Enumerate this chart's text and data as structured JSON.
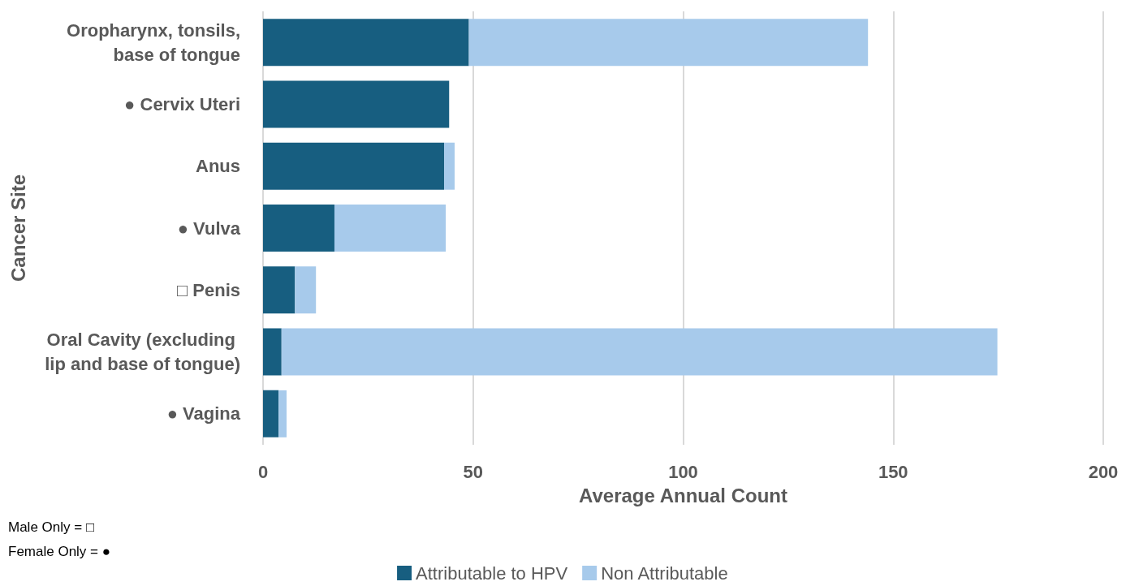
{
  "chart_data": {
    "type": "bar",
    "orientation": "horizontal",
    "stacked": true,
    "xlabel": "Average Annual Count",
    "ylabel": "Cancer Site",
    "categories": [
      "Oropharynx, tonsils,\nbase of tongue",
      "● Cervix Uteri",
      "Anus",
      "● Vulva",
      "□ Penis",
      "Oral Cavity (excluding \nlip and base of tongue)",
      "● Vagina"
    ],
    "series": [
      {
        "name": "Attributable to HPV",
        "color": "#175e80",
        "values": [
          49,
          44.3,
          43.1,
          17,
          7.6,
          4.4,
          3.7
        ]
      },
      {
        "name": "Non Attributable",
        "color": "#a7caeb",
        "values": [
          95,
          0,
          2.5,
          26.5,
          5,
          170.4,
          1.9
        ]
      }
    ],
    "xlim": [
      0,
      200
    ],
    "xticks": [
      0,
      50,
      100,
      150,
      200
    ],
    "grid": "x",
    "legend": "bottom",
    "annotations": [
      "Male Only = □",
      "Female Only = ●"
    ]
  }
}
